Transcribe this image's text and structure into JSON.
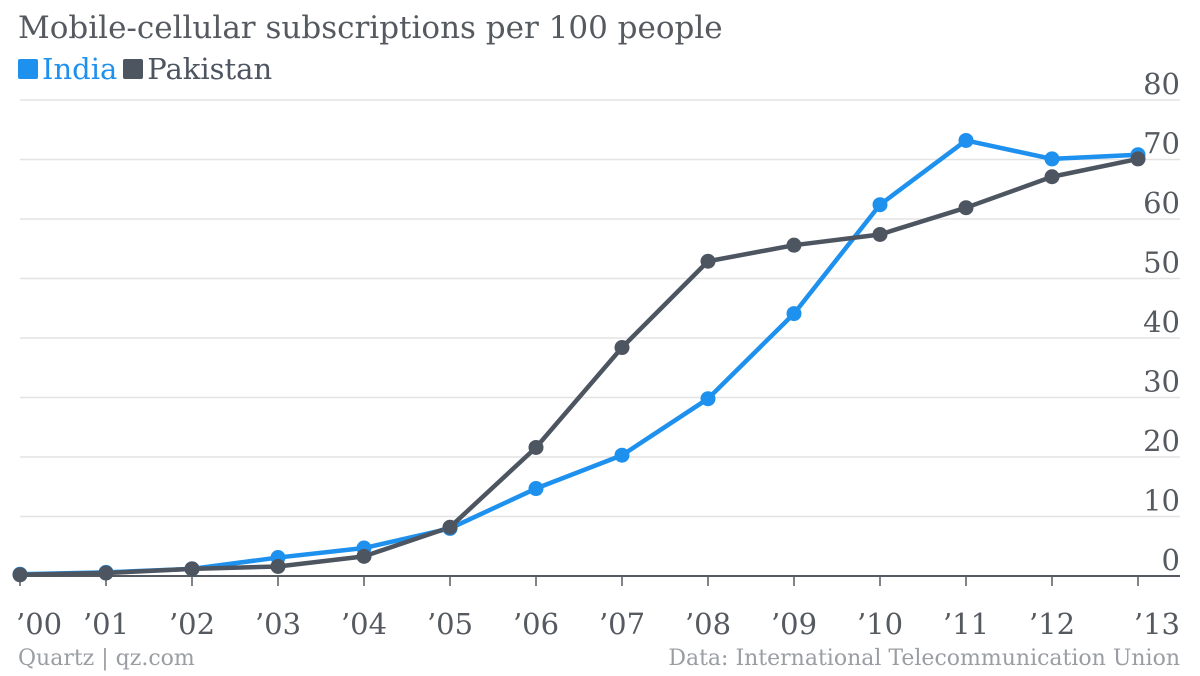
{
  "title": "Mobile-cellular subscriptions per 100 people",
  "footer": {
    "source_left": "Quartz | qz.com",
    "source_right": "Data: International Telecommunication Union"
  },
  "colors": {
    "india": "#1e90ee",
    "pakistan": "#4d5561",
    "grid": "#e3e3e3",
    "axis": "#555a60"
  },
  "chart_data": {
    "type": "line",
    "title": "Mobile-cellular subscriptions per 100 people",
    "x": [
      "’00",
      "’01",
      "’02",
      "’03",
      "’04",
      "’05",
      "’06",
      "’07",
      "’08",
      "’09",
      "’10",
      "’11",
      "’12",
      "’13"
    ],
    "series": [
      {
        "name": "India",
        "values": [
          0.3,
          0.6,
          1.2,
          3.1,
          4.7,
          8.0,
          14.7,
          20.3,
          29.8,
          44.1,
          62.4,
          73.2,
          70.1,
          70.8
        ]
      },
      {
        "name": "Pakistan",
        "values": [
          0.2,
          0.5,
          1.2,
          1.6,
          3.3,
          8.2,
          21.6,
          38.4,
          52.9,
          55.6,
          57.4,
          61.9,
          67.1,
          70.1
        ]
      }
    ],
    "yticks": [
      0,
      10,
      20,
      30,
      40,
      50,
      60,
      70,
      80
    ],
    "ylim": [
      0,
      80
    ],
    "grid": true,
    "legend": "top-left",
    "y_axis_side": "right"
  }
}
